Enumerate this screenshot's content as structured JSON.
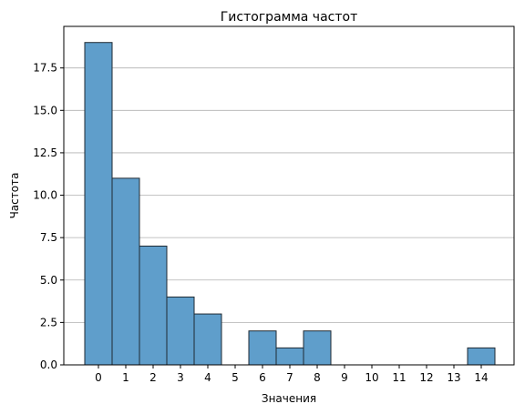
{
  "chart_data": {
    "type": "bar",
    "title": "Гистограмма частот",
    "xlabel": "Значения",
    "ylabel": "Частота",
    "categories": [
      "0",
      "1",
      "2",
      "3",
      "4",
      "5",
      "6",
      "7",
      "8",
      "9",
      "10",
      "11",
      "12",
      "13",
      "14"
    ],
    "values": [
      19,
      11,
      7,
      4,
      3,
      0,
      2,
      1,
      2,
      0,
      0,
      0,
      0,
      0,
      1
    ],
    "ylim": [
      0,
      19.95
    ],
    "yticks": [
      "0.0",
      "2.5",
      "5.0",
      "7.5",
      "10.0",
      "12.5",
      "15.0",
      "17.5"
    ],
    "grid": "y",
    "bar_color": "#5f9ecb",
    "edge_color": "#1f2a33"
  }
}
